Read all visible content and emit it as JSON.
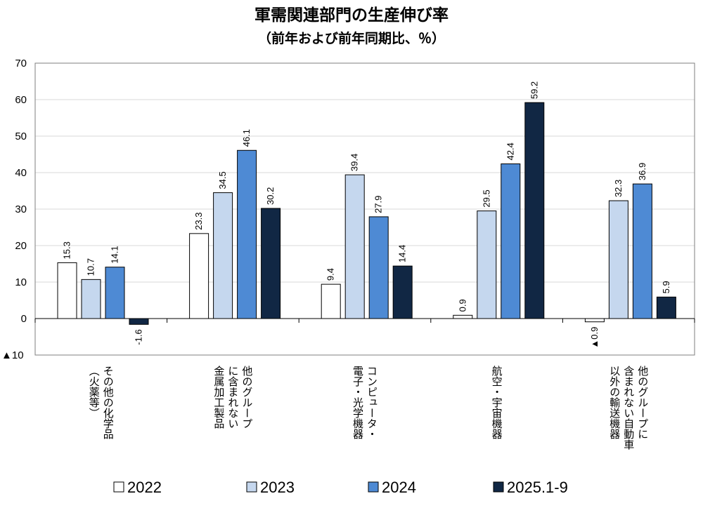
{
  "chart_data": {
    "type": "bar",
    "title": "軍需関連部門の生産伸び率",
    "subtitle": "（前年および前年同期比、％）",
    "ylim": [
      -10,
      70
    ],
    "yticks": [
      -10,
      0,
      10,
      20,
      30,
      40,
      50,
      60,
      70
    ],
    "ytick_labels": [
      "▲10",
      "0",
      "10",
      "20",
      "30",
      "40",
      "50",
      "60",
      "70"
    ],
    "grid": true,
    "legend_position": "bottom",
    "categories": [
      [
        "その他の化学品",
        "（火薬等）"
      ],
      [
        "他のグループ",
        "に含まれない",
        "金属加工製品"
      ],
      [
        "コンピュータ・",
        "電子・光学機器"
      ],
      [
        "航空・宇宙機器"
      ],
      [
        "他のグループに",
        "含まれない自動車",
        "以外の輸送機器"
      ]
    ],
    "series": [
      {
        "name": "2022",
        "color": "#ffffff",
        "values": [
          15.3,
          23.3,
          9.4,
          0.9,
          -0.9
        ],
        "labels": [
          "15.3",
          "23.3",
          "9.4",
          "0.9",
          "▲0.9"
        ]
      },
      {
        "name": "2023",
        "color": "#c5d7ee",
        "values": [
          10.7,
          34.5,
          39.4,
          29.5,
          32.3
        ],
        "labels": [
          "10.7",
          "34.5",
          "39.4",
          "29.5",
          "32.3"
        ]
      },
      {
        "name": "2024",
        "color": "#4e8ad4",
        "values": [
          14.1,
          46.1,
          27.9,
          42.4,
          36.9
        ],
        "labels": [
          "14.1",
          "46.1",
          "27.9",
          "42.4",
          "36.9"
        ]
      },
      {
        "name": "2025.1-9",
        "color": "#112744",
        "values": [
          -1.6,
          30.2,
          14.4,
          59.2,
          5.9
        ],
        "labels": [
          "-1.6",
          "30.2",
          "14.4",
          "59.2",
          "5.9"
        ]
      }
    ]
  }
}
